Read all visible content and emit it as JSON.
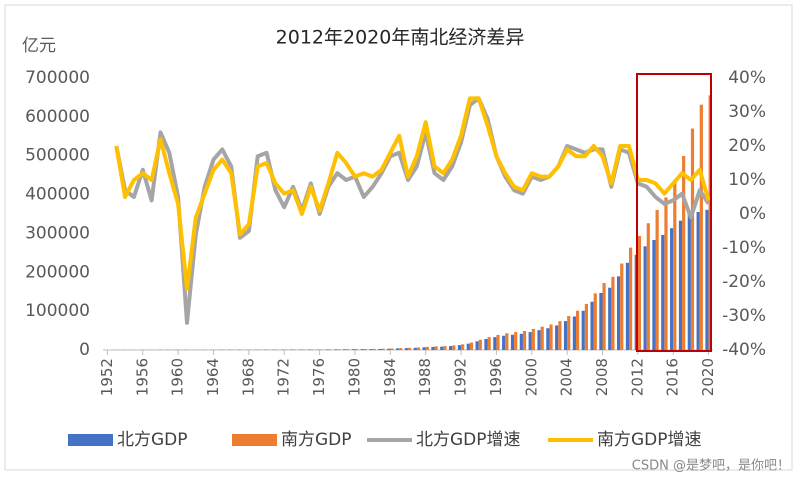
{
  "chart_data": {
    "type": "combo",
    "title": "2012年2020年南北经济差异",
    "y_axis_label": "亿元",
    "watermark": "CSDN @是梦吧，是你吧！",
    "x": [
      1953,
      1954,
      1955,
      1956,
      1957,
      1958,
      1959,
      1960,
      1961,
      1962,
      1963,
      1964,
      1965,
      1966,
      1967,
      1968,
      1969,
      1970,
      1971,
      1972,
      1973,
      1974,
      1975,
      1976,
      1977,
      1978,
      1979,
      1980,
      1981,
      1982,
      1983,
      1984,
      1985,
      1986,
      1987,
      1988,
      1989,
      1990,
      1991,
      1992,
      1993,
      1994,
      1995,
      1996,
      1997,
      1998,
      1999,
      2000,
      2001,
      2002,
      2003,
      2004,
      2005,
      2006,
      2007,
      2008,
      2009,
      2010,
      2011,
      2012,
      2013,
      2014,
      2015,
      2016,
      2017,
      2018,
      2019,
      2020
    ],
    "xlim": [
      1951.5,
      2020.5
    ],
    "xticks": [
      1952,
      1956,
      1960,
      1964,
      1968,
      1972,
      1976,
      1980,
      1984,
      1988,
      1992,
      1996,
      2000,
      2004,
      2008,
      2012,
      2016,
      2020
    ],
    "ylim": [
      0,
      700000
    ],
    "yticks": [
      0,
      100000,
      200000,
      300000,
      400000,
      500000,
      600000,
      700000
    ],
    "y2lim": [
      -40,
      40
    ],
    "y2ticks": [
      {
        "value": -40,
        "label": "-40%"
      },
      {
        "value": -30,
        "label": "-30%"
      },
      {
        "value": -20,
        "label": "-20%"
      },
      {
        "value": -10,
        "label": "-10%"
      },
      {
        "value": 0,
        "label": "0%"
      },
      {
        "value": 10,
        "label": "10%"
      },
      {
        "value": 20,
        "label": "20%"
      },
      {
        "value": 30,
        "label": "30%"
      },
      {
        "value": 40,
        "label": "40%"
      }
    ],
    "legend": "bottom",
    "series": [
      {
        "name": "北方GDP",
        "type": "bar",
        "color": "#4472c4",
        "values": [
          379,
          395,
          419,
          474,
          493,
          604,
          666,
          676,
          567,
          535,
          574,
          676,
          798,
          868,
          825,
          802,
          903,
          1049,
          1130,
          1174,
          1268,
          1301,
          1398,
          1375,
          1495,
          1692,
          1886,
          2110,
          2271,
          2472,
          2770,
          3348,
          4186,
          4773,
          5601,
          6983,
          7903,
          8682,
          10123,
          12510,
          16410,
          22373,
          28216,
          33034,
          36669,
          39190,
          41659,
          46129,
          50997,
          55990,
          63214,
          74446,
          86167,
          100942,
          124242,
          146853,
          160318,
          189575,
          224452,
          245000,
          266800,
          283200,
          296200,
          313500,
          332800,
          349300,
          355100,
          360700
        ]
      },
      {
        "name": "南方GDP",
        "type": "bar",
        "color": "#ed7d31",
        "values": [
          445,
          464,
          492,
          556,
          578,
          708,
          781,
          794,
          665,
          627,
          674,
          794,
          936,
          1020,
          969,
          942,
          1059,
          1231,
          1326,
          1378,
          1488,
          1527,
          1642,
          1614,
          1755,
          1987,
          2215,
          2478,
          2665,
          2901,
          3251,
          3931,
          4913,
          5603,
          6574,
          8197,
          9277,
          10191,
          11883,
          14685,
          19263,
          26265,
          33124,
          38780,
          43046,
          46006,
          48905,
          54151,
          59866,
          65727,
          74208,
          87394,
          101152,
          118497,
          145850,
          172392,
          188200,
          222544,
          263488,
          293580,
          326163,
          360363,
          392658,
          432895,
          499236,
          569981,
          631415,
          655286
        ]
      },
      {
        "name": "北方GDP增速",
        "type": "line",
        "axis": "y2",
        "color": "#a5a5a5",
        "values": [
          20,
          7,
          5,
          13,
          4,
          24,
          18,
          5,
          -32,
          -6,
          8,
          16,
          19,
          14,
          -7,
          -5,
          17,
          18,
          7,
          2,
          8,
          1,
          9,
          0,
          8,
          12,
          10,
          11,
          5,
          8,
          12,
          17,
          18,
          10,
          14,
          24,
          12,
          10,
          14,
          21,
          32,
          34,
          28,
          17,
          11,
          7,
          6,
          11,
          10,
          11,
          14,
          20,
          19,
          18,
          19,
          19,
          8,
          19,
          18,
          9,
          8,
          5,
          3,
          4,
          6,
          -1,
          7,
          3
        ]
      },
      {
        "name": "南方GDP增速",
        "type": "line",
        "axis": "y2",
        "color": "#ffc000",
        "values": [
          20,
          5,
          10,
          12,
          10,
          22,
          12,
          3,
          -22,
          -1,
          6,
          13,
          16,
          12,
          -6,
          -3,
          14,
          15,
          9,
          6,
          7,
          0,
          8,
          1,
          9,
          18,
          15,
          11,
          12,
          11,
          13,
          18,
          23,
          11,
          17,
          27,
          14,
          12,
          16,
          23,
          34,
          34,
          26,
          17,
          12,
          8,
          7,
          12,
          11,
          11,
          14,
          19,
          17,
          17,
          20,
          17,
          9,
          20,
          20,
          10,
          10,
          9,
          6,
          9,
          12,
          10,
          13,
          4
        ]
      }
    ]
  }
}
